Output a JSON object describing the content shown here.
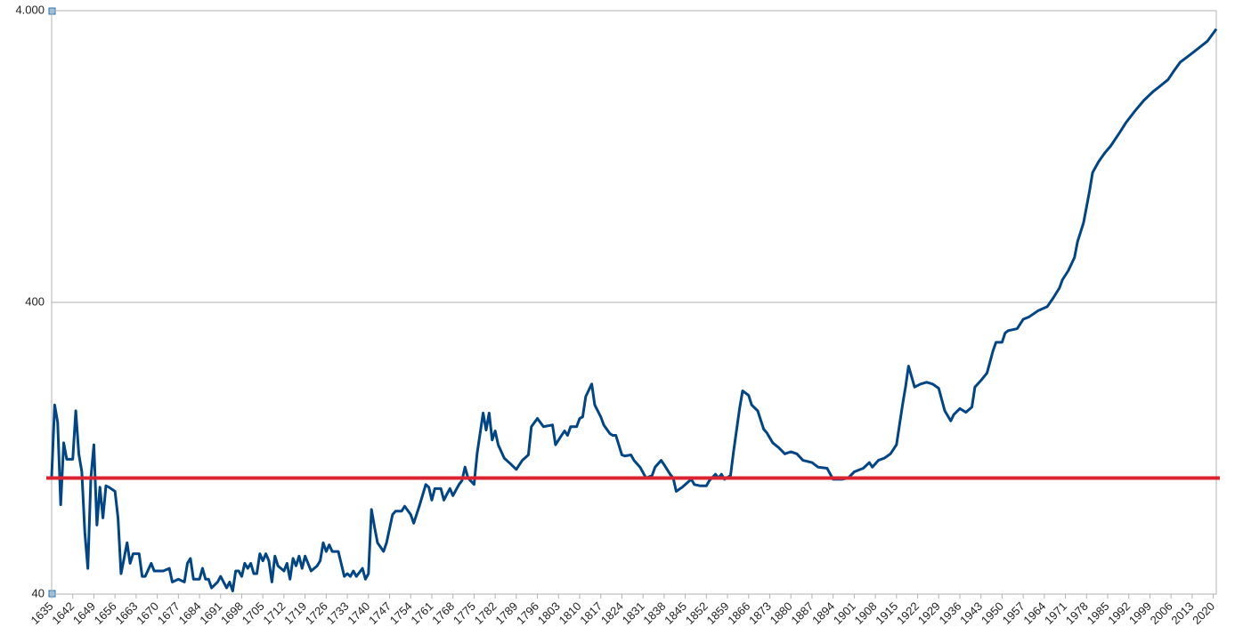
{
  "chart_data": {
    "type": "line",
    "yscale": "log",
    "grid": true,
    "xlim": [
      1635,
      2021
    ],
    "ylim": [
      40,
      4000
    ],
    "yticks": [
      40,
      400,
      {
        "value": 4000,
        "label": "4.000"
      }
    ],
    "xticks": [
      1635,
      1642,
      1649,
      1656,
      1663,
      1670,
      1677,
      1684,
      1691,
      1698,
      1705,
      1712,
      1719,
      1726,
      1733,
      1740,
      1747,
      1754,
      1761,
      1768,
      1775,
      1782,
      1789,
      1796,
      1803,
      1810,
      1817,
      1824,
      1831,
      1838,
      1845,
      1852,
      1859,
      1866,
      1873,
      1880,
      1887,
      1894,
      1901,
      1908,
      1915,
      1922,
      1929,
      1936,
      1943,
      1950,
      1957,
      1964,
      1971,
      1978,
      1985,
      1992,
      1999,
      2006,
      2013,
      2020
    ],
    "x": [
      1635,
      1636,
      1637,
      1638,
      1639,
      1640,
      1642,
      1643,
      1644,
      1645,
      1646,
      1647,
      1648,
      1649,
      1650,
      1651,
      1652,
      1653,
      1654,
      1656,
      1657,
      1658,
      1659,
      1660,
      1661,
      1662,
      1664,
      1665,
      1666,
      1668,
      1669,
      1672,
      1674,
      1675,
      1677,
      1679,
      1680,
      1681,
      1682,
      1684,
      1685,
      1686,
      1687,
      1688,
      1690,
      1691,
      1693,
      1694,
      1695,
      1696,
      1697,
      1698,
      1699,
      1700,
      1701,
      1702,
      1703,
      1704,
      1705,
      1706,
      1707,
      1708,
      1709,
      1710,
      1712,
      1713,
      1714,
      1715,
      1716,
      1717,
      1718,
      1719,
      1721,
      1723,
      1724,
      1725,
      1726,
      1727,
      1728,
      1730,
      1732,
      1733,
      1734,
      1735,
      1736,
      1738,
      1739,
      1740,
      1741,
      1742,
      1743,
      1745,
      1746,
      1748,
      1749,
      1751,
      1752,
      1754,
      1755,
      1757,
      1759,
      1760,
      1761,
      1762,
      1764,
      1765,
      1766,
      1767,
      1768,
      1770,
      1771,
      1772,
      1773,
      1775,
      1776,
      1778,
      1779,
      1780,
      1781,
      1782,
      1783,
      1785,
      1787,
      1789,
      1791,
      1793,
      1794,
      1796,
      1798,
      1801,
      1802,
      1804,
      1805,
      1806,
      1807,
      1809,
      1810,
      1811,
      1812,
      1814,
      1815,
      1817,
      1818,
      1820,
      1821,
      1822,
      1824,
      1825,
      1827,
      1828,
      1830,
      1832,
      1834,
      1835,
      1837,
      1838,
      1840,
      1841,
      1842,
      1844,
      1845,
      1847,
      1848,
      1850,
      1852,
      1853,
      1855,
      1856,
      1857,
      1858,
      1860,
      1861,
      1863,
      1864,
      1866,
      1867,
      1869,
      1871,
      1872,
      1874,
      1876,
      1878,
      1880,
      1882,
      1884,
      1887,
      1889,
      1892,
      1894,
      1897,
      1899,
      1901,
      1904,
      1906,
      1907,
      1909,
      1911,
      1913,
      1915,
      1917,
      1918,
      1919,
      1921,
      1923,
      1925,
      1927,
      1929,
      1931,
      1933,
      1934,
      1936,
      1938,
      1940,
      1941,
      1943,
      1945,
      1947,
      1948,
      1950,
      1951,
      1952,
      1955,
      1957,
      1959,
      1962,
      1965,
      1967,
      1969,
      1970,
      1972,
      1974,
      1975,
      1977,
      1979,
      1980,
      1982,
      1984,
      1986,
      1989,
      1991,
      1994,
      1997,
      2000,
      2002,
      2005,
      2007,
      2009,
      2013,
      2018,
      2021
    ],
    "series": [
      {
        "color": "#004586",
        "values": [
          101,
          178,
          155,
          81,
          132,
          116,
          116,
          170,
          121,
          105,
          65,
          49,
          100,
          130,
          69,
          93,
          73,
          94,
          93,
          90,
          73,
          47,
          53,
          60,
          51,
          55,
          55,
          46,
          46,
          51,
          48,
          48,
          49,
          44,
          45,
          44,
          51,
          53,
          45,
          45,
          49,
          45,
          45,
          42,
          44,
          46,
          42,
          44,
          41,
          48,
          48,
          46,
          51,
          49,
          51,
          47,
          47,
          55,
          52,
          55,
          52,
          44,
          54,
          50,
          48,
          51,
          45,
          53,
          50,
          54,
          49,
          54,
          48,
          50,
          52,
          60,
          56,
          59,
          56,
          56,
          46,
          47,
          46,
          48,
          46,
          49,
          45,
          47,
          78,
          68,
          60,
          56,
          60,
          75,
          77,
          77,
          80,
          75,
          70,
          81,
          95,
          93,
          84,
          92,
          92,
          84,
          88,
          92,
          87,
          95,
          98,
          109,
          100,
          95,
          121,
          167,
          146,
          167,
          135,
          145,
          130,
          117,
          112,
          107,
          115,
          120,
          150,
          160,
          150,
          152,
          130,
          140,
          145,
          140,
          150,
          150,
          160,
          162,
          190,
          210,
          178,
          162,
          152,
          142,
          140,
          140,
          120,
          119,
          120,
          115,
          109,
          100,
          102,
          109,
          115,
          111,
          103,
          100,
          90,
          93,
          95,
          99,
          95,
          94,
          94,
          98,
          103,
          100,
          103,
          99,
          102,
          123,
          173,
          199,
          192,
          178,
          170,
          147,
          143,
          132,
          127,
          121,
          123,
          121,
          115,
          113,
          109,
          108,
          99,
          99,
          100,
          105,
          108,
          113,
          109,
          115,
          117,
          121,
          130,
          178,
          205,
          242,
          205,
          210,
          213,
          210,
          203,
          170,
          157,
          165,
          173,
          168,
          175,
          205,
          216,
          229,
          273,
          292,
          292,
          314,
          320,
          325,
          350,
          357,
          375,
          387,
          415,
          448,
          478,
          515,
          570,
          645,
          750,
          965,
          1115,
          1215,
          1300,
          1375,
          1530,
          1650,
          1810,
          1970,
          2110,
          2190,
          2320,
          2490,
          2660,
          2860,
          3140,
          3460
        ]
      }
    ],
    "reference_lines": [
      {
        "value": 100,
        "color": "#dc2430"
      }
    ]
  }
}
